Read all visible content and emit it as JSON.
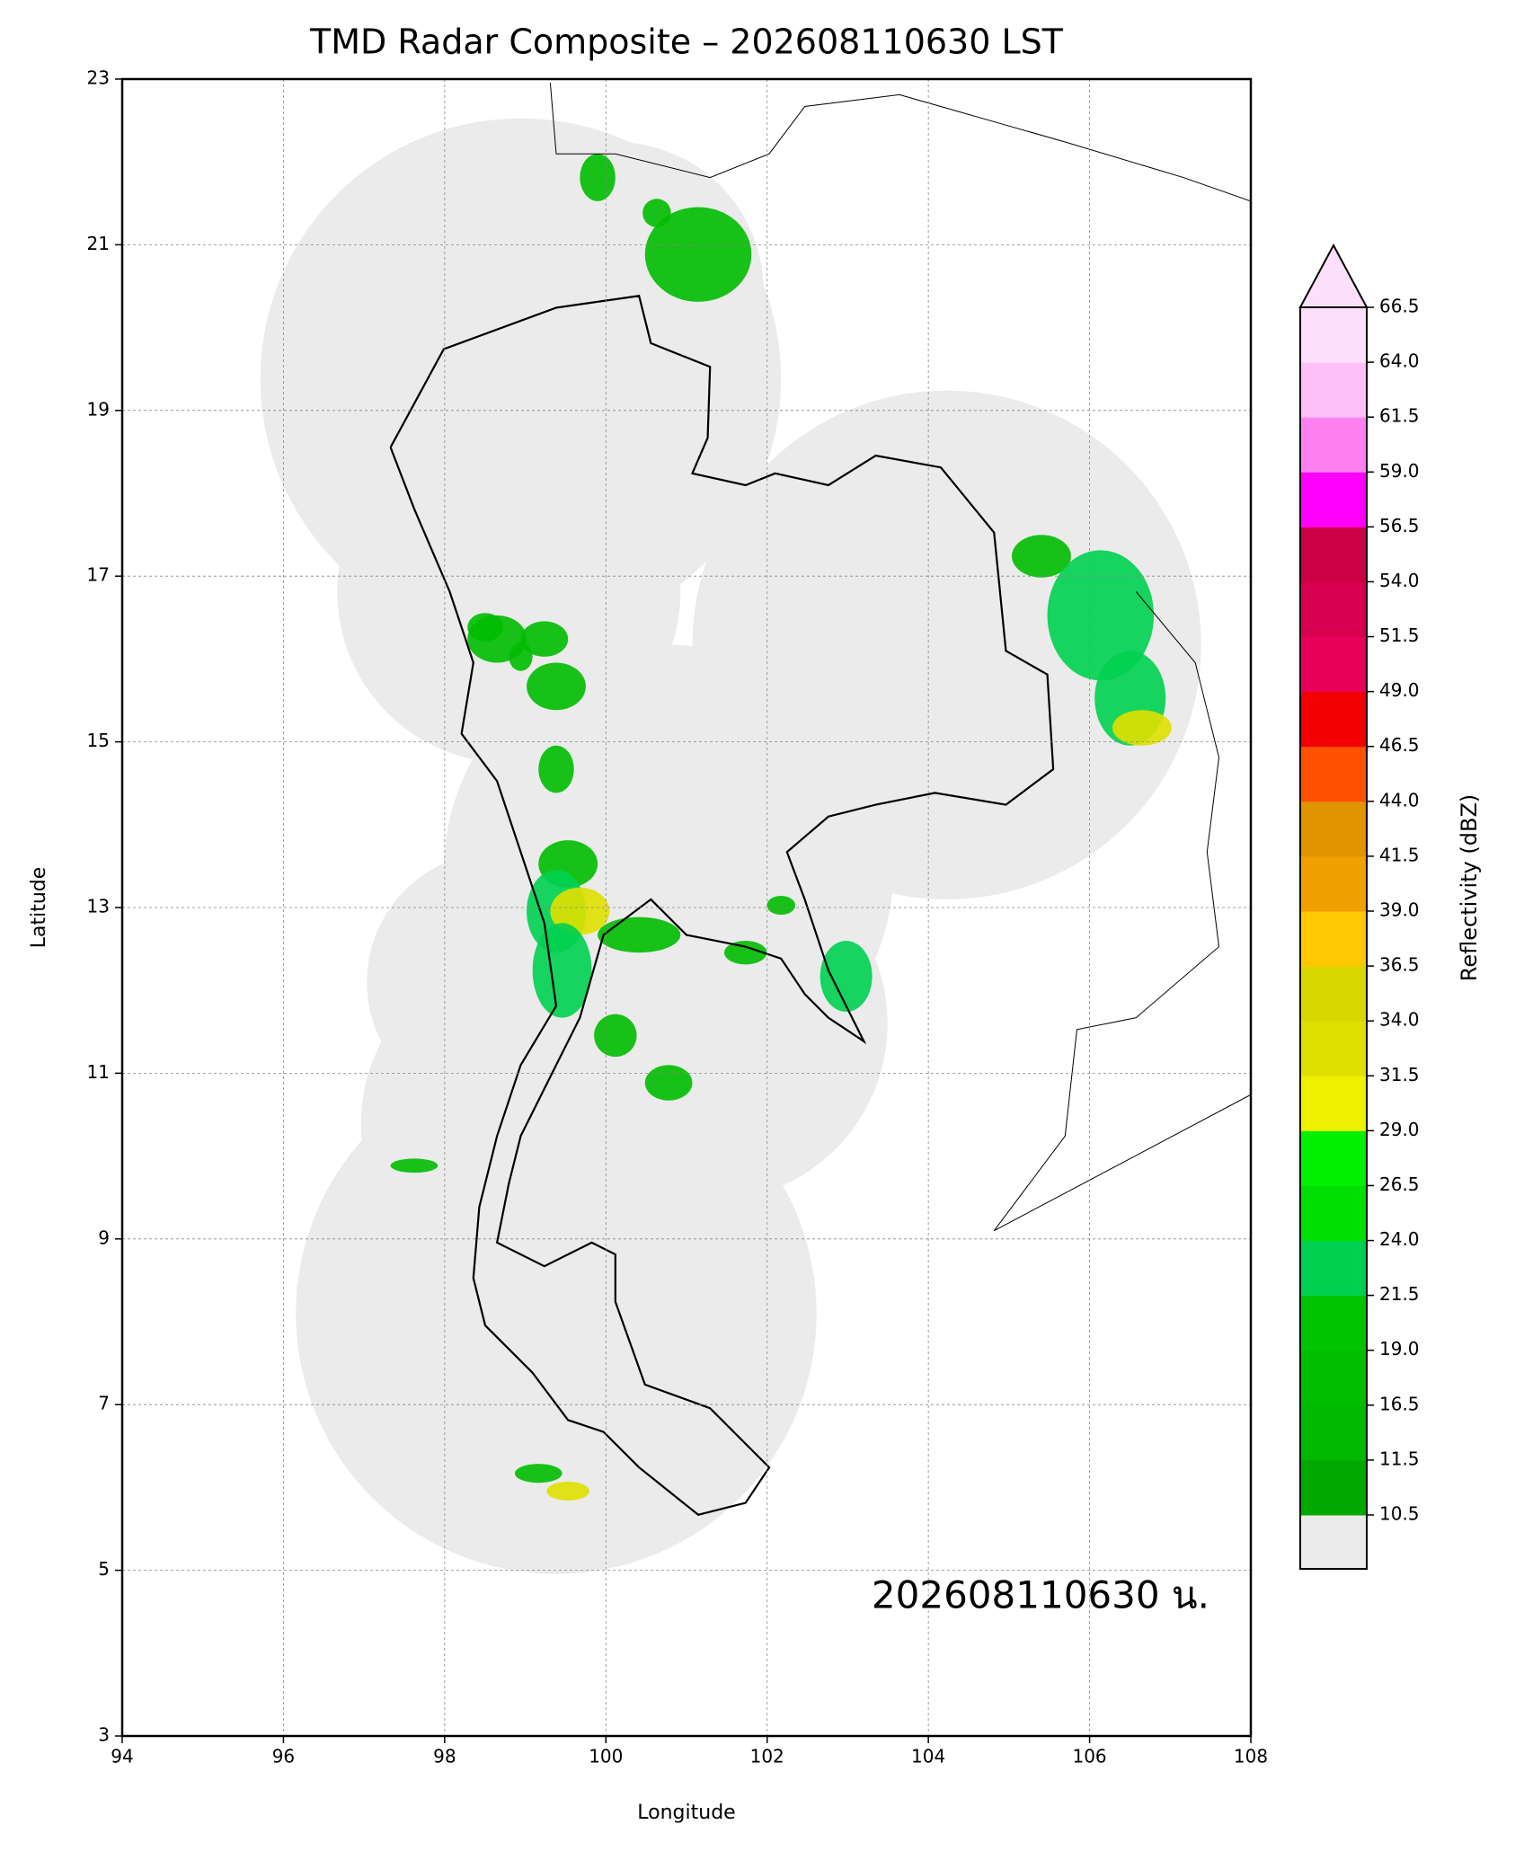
{
  "chart_data": {
    "type": "map",
    "title": "TMD Radar Composite – 202608110630 LST",
    "x_label": "Longitude",
    "y_label": "Latitude",
    "xlim": [
      94,
      108
    ],
    "ylim": [
      3,
      23
    ],
    "xticks": [
      94,
      96,
      98,
      100,
      102,
      104,
      106,
      108
    ],
    "yticks": [
      3,
      5,
      7,
      9,
      11,
      13,
      15,
      17,
      19,
      21,
      23
    ],
    "grid": true,
    "annotation": "202608110630 น.",
    "colorbar": {
      "label": "Reflectivity (dBZ)",
      "ticks": [
        10.5,
        11.5,
        16.5,
        {
          "value": 19,
          "label": "19.0"
        },
        21.5,
        {
          "value": 24,
          "label": "24.0"
        },
        26.5,
        {
          "value": 29,
          "label": "29.0"
        },
        31.5,
        {
          "value": 34,
          "label": "34.0"
        },
        36.5,
        {
          "value": 39,
          "label": "39.0"
        },
        41.5,
        {
          "value": 44,
          "label": "44.0"
        },
        46.5,
        {
          "value": 49,
          "label": "49.0"
        },
        51.5,
        {
          "value": 54,
          "label": "54.0"
        },
        56.5,
        {
          "value": 59,
          "label": "59.0"
        },
        61.5,
        {
          "value": 64,
          "label": "64.0"
        },
        66.5
      ],
      "colors": [
        "#00a800",
        "#00b800",
        "#00bd00",
        "#00c400",
        "#00d050",
        "#00e000",
        "#00f000",
        "#f0f000",
        "#e0e000",
        "#d8d800",
        "#ffc800",
        "#f0a000",
        "#e09400",
        "#ff5000",
        "#f00000",
        "#e8005a",
        "#d8004e",
        "#cc0044",
        "#ff00ff",
        "#ff80f0",
        "#ffc0f8",
        "#ffe0fa"
      ],
      "under_color": "#ebebeb",
      "over_color": "#ffe0fa"
    }
  }
}
